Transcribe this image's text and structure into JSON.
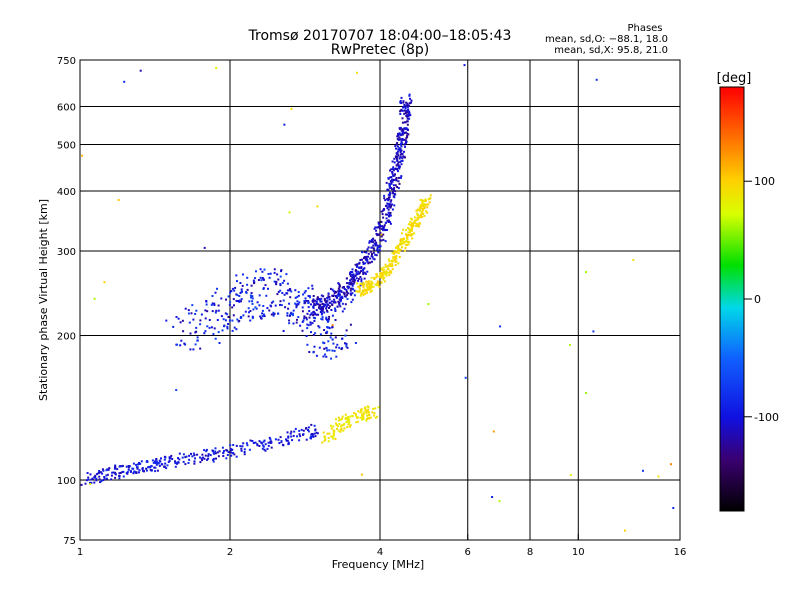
{
  "chart_data": {
    "type": "scatter",
    "title": "Tromsø 20170707 18:04:00–18:05:43",
    "subtitle": "RwPretec (8p)",
    "xlabel": "Frequency [MHz]",
    "ylabel": "Stationary phase Virtual Height [km]",
    "x_scale": "log",
    "y_scale": "log",
    "xlim": [
      1,
      16
    ],
    "ylim": [
      75,
      750
    ],
    "x_ticks": [
      1,
      2,
      4,
      6,
      8,
      10,
      16
    ],
    "y_ticks": [
      75,
      100,
      200,
      300,
      400,
      500,
      600,
      750
    ],
    "x_grid": [
      2,
      4,
      6,
      8,
      10
    ],
    "y_grid": [
      100,
      200,
      300,
      400,
      500,
      600
    ],
    "grid": true,
    "stats": {
      "heading": "Phases",
      "line_o": "mean, sd,O: −88.1, 18.0",
      "line_x": "mean, sd,X:  95.8, 21.0"
    },
    "colorbar": {
      "label": "[deg]",
      "range": [
        -180,
        180
      ],
      "ticks": [
        100,
        0,
        -100
      ],
      "placement": "right"
    },
    "series_o_phase": -90,
    "series_x_phase": 96,
    "trace_o_F": {
      "phase": -110,
      "x": [
        2.9,
        3.1,
        3.3,
        3.5,
        3.7,
        3.9,
        4.1,
        4.2,
        4.3,
        4.4,
        4.45,
        4.5
      ],
      "y": [
        230,
        235,
        245,
        260,
        280,
        310,
        350,
        400,
        450,
        500,
        560,
        620
      ]
    },
    "trace_o_spread": {
      "phase": -95,
      "x": [
        1.6,
        1.8,
        2.0,
        2.2,
        2.4,
        2.6,
        2.8,
        3.0,
        3.2,
        3.4
      ],
      "y": [
        205,
        215,
        230,
        245,
        250,
        240,
        225,
        210,
        205,
        220
      ]
    },
    "trace_o_low": {
      "phase": -100,
      "x": [
        1.0,
        1.1,
        1.2,
        1.3,
        1.4,
        1.5,
        1.7,
        1.9,
        2.1,
        2.4,
        2.7,
        3.0
      ],
      "y": [
        100,
        103,
        105,
        107,
        108,
        110,
        112,
        114,
        117,
        120,
        124,
        128
      ]
    },
    "trace_x_F": {
      "phase": 95,
      "x": [
        3.6,
        3.8,
        4.0,
        4.2,
        4.4,
        4.6,
        4.8,
        4.95
      ],
      "y": [
        250,
        255,
        265,
        285,
        310,
        335,
        360,
        385
      ]
    },
    "trace_x_low": {
      "phase": 90,
      "x": [
        3.1,
        3.3,
        3.5,
        3.7,
        3.9
      ],
      "y": [
        122,
        130,
        135,
        138,
        140
      ]
    }
  }
}
